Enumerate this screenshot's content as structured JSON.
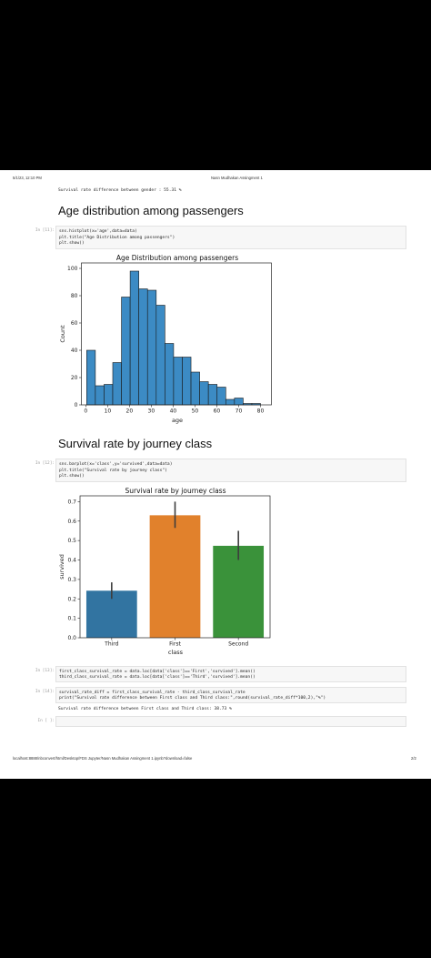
{
  "page": {
    "header_left": "5/1/23, 12:10 PM",
    "header_right": "Nasn Mudhakan Assingment 1",
    "footer_left": "localhost:8888/nbconvert/html/Desktop/FDS Jupyter/Nasn Mudhakan Assingment 1.ipynb?download=false",
    "footer_right": "2/2"
  },
  "outputs": {
    "gender_diff": "Survival rate difference between gender : 55.31 %",
    "class_diff": "Survival rate difference between First class and Third class: 38.73 %"
  },
  "sections": {
    "age_title": "Age distribution among passengers",
    "class_title": "Survival rate by journey class"
  },
  "cells": {
    "c11_prompt": "In [11]:",
    "c11_l1": "sns.histplot(x='age',data=data)",
    "c11_l2": "plt.title(\"Age Distribution among passengers\")",
    "c11_l3": "plt.show()",
    "c12_prompt": "In [12]:",
    "c12_l1": "sns.barplot(x='class',y='survived',data=data)",
    "c12_l2": "plt.title(\"Survival rate by journey class\")",
    "c12_l3": "plt.show()",
    "c13_prompt": "In [13]:",
    "c13_l1": "first_class_survival_rate = data.loc[data['class']=='First','survived'].mean()",
    "c13_l2": "third_class_survival_rate = data.loc[data['class']=='Third','survived'].mean()",
    "c14_prompt": "In [14]:",
    "c14_l1": "survival_rate_diff = first_class_survival_rate - third_class_survival_rate",
    "c14_l2": "print(\"Survival rate difference between First class and Third class:\",round(survival_rate_diff*100,2),\"%\")",
    "c15_prompt": "In [ ]:"
  },
  "chart_data": [
    {
      "type": "bar",
      "title": "Age Distribution among passengers",
      "xlabel": "age",
      "ylabel": "Count",
      "xlim": [
        -2,
        85
      ],
      "ylim": [
        0,
        104
      ],
      "xticks": [
        0,
        10,
        20,
        30,
        40,
        50,
        60,
        70,
        80
      ],
      "yticks": [
        0,
        20,
        40,
        60,
        80,
        100
      ],
      "bin_edges": [
        0.42,
        4.4,
        8.38,
        12.36,
        16.34,
        20.32,
        24.3,
        28.28,
        32.26,
        36.24,
        40.22,
        44.2,
        48.18,
        52.16,
        56.14,
        60.12,
        64.1,
        68.08,
        72.06,
        76.04,
        80.0
      ],
      "values": [
        40,
        14,
        15,
        31,
        79,
        98,
        85,
        84,
        73,
        45,
        35,
        35,
        24,
        17,
        15,
        13,
        4,
        5,
        1,
        1
      ],
      "color": "#3c8bc4",
      "grid": false
    },
    {
      "type": "bar",
      "title": "Survival rate by journey class",
      "xlabel": "class",
      "ylabel": "survived",
      "categories": [
        "Third",
        "First",
        "Second"
      ],
      "values": [
        0.242,
        0.63,
        0.473
      ],
      "ci_low": [
        0.2,
        0.565,
        0.4
      ],
      "ci_high": [
        0.285,
        0.7,
        0.55
      ],
      "colors": [
        "#3274a1",
        "#e1812c",
        "#3a923a"
      ],
      "ylim": [
        0,
        0.73
      ],
      "yticks": [
        0.0,
        0.1,
        0.2,
        0.3,
        0.4,
        0.5,
        0.6,
        0.7
      ],
      "ytick_labels": [
        "0.0",
        "0.1",
        "0.2",
        "0.3",
        "0.4",
        "0.5",
        "0.6",
        "0.7"
      ],
      "grid": false
    }
  ]
}
